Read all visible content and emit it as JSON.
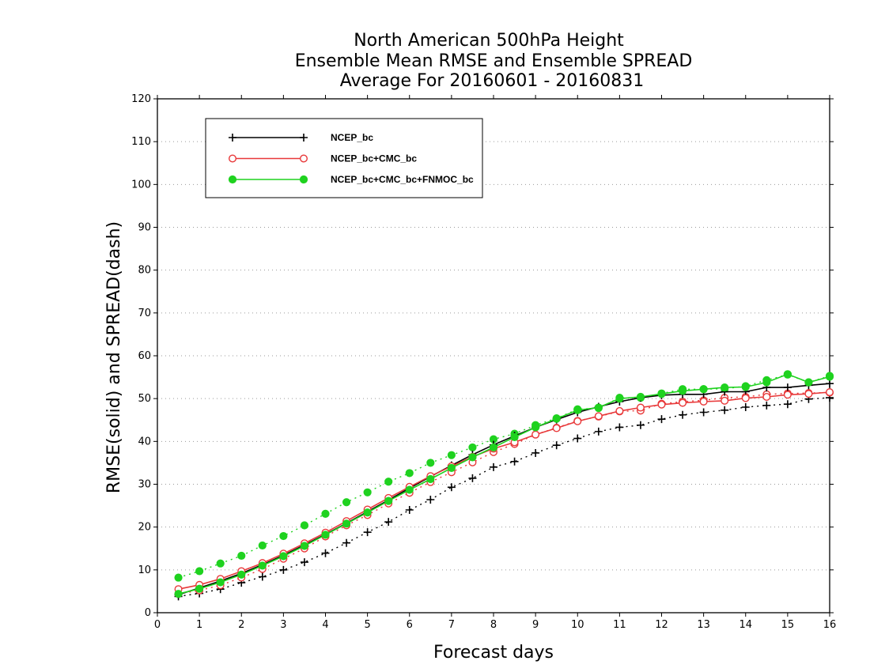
{
  "chart_data": {
    "type": "line",
    "title": [
      "North American 500hPa Height",
      "Ensemble Mean RMSE and Ensemble SPREAD",
      "Average For 20160601 - 20160831"
    ],
    "xlabel": "Forecast days",
    "ylabel": "RMSE(solid) and SPREAD(dash)",
    "xlim": [
      0,
      16
    ],
    "ylim": [
      0,
      120
    ],
    "xticks": [
      0,
      1,
      2,
      3,
      4,
      5,
      6,
      7,
      8,
      9,
      10,
      11,
      12,
      13,
      14,
      15,
      16
    ],
    "yticks": [
      0,
      10,
      20,
      30,
      40,
      50,
      60,
      70,
      80,
      90,
      100,
      110,
      120
    ],
    "grid": true,
    "legend_position": "top-left",
    "x": [
      0.5,
      1,
      1.5,
      2,
      2.5,
      3,
      3.5,
      4,
      4.5,
      5,
      5.5,
      6,
      6.5,
      7,
      7.5,
      8,
      8.5,
      9,
      9.5,
      10,
      10.5,
      11,
      11.5,
      12,
      12.5,
      13,
      13.5,
      14,
      14.5,
      15,
      15.5,
      16
    ],
    "series": [
      {
        "name": "NCEP_bc",
        "color": "#000000",
        "marker": "plus",
        "rmse": [
          4.2,
          5.8,
          7.4,
          9.2,
          11.2,
          13.4,
          15.8,
          18.3,
          20.9,
          23.6,
          26.3,
          29.1,
          31.8,
          34.4,
          36.9,
          39.2,
          41.3,
          43.3,
          45.1,
          46.8,
          48.1,
          49.3,
          50.2,
          50.8,
          51.0,
          51.0,
          51.6,
          51.6,
          52.6,
          52.6,
          53.1,
          53.5
        ],
        "spread": [
          3.8,
          4.5,
          5.5,
          7.0,
          8.4,
          10.0,
          11.8,
          13.9,
          16.3,
          18.8,
          21.2,
          24.0,
          26.4,
          29.3,
          31.4,
          34.0,
          35.3,
          37.3,
          39.1,
          40.7,
          42.3,
          43.3,
          43.8,
          45.2,
          46.2,
          46.8,
          47.3,
          48.0,
          48.4,
          48.7,
          49.9,
          50.2
        ]
      },
      {
        "name": "NCEP_bc+CMC_bc",
        "color": "#e8393a",
        "marker": "open-circle",
        "rmse": [
          5.5,
          6.5,
          7.9,
          9.7,
          11.6,
          13.8,
          16.2,
          18.7,
          21.4,
          24.1,
          26.8,
          29.4,
          31.9,
          34.2,
          36.4,
          38.3,
          39.8,
          41.6,
          43.1,
          44.7,
          45.9,
          47.1,
          47.9,
          48.6,
          49.0,
          49.3,
          49.5,
          50.1,
          50.4,
          50.9,
          51.1,
          51.5
        ],
        "spread": [
          4.4,
          5.2,
          6.4,
          8.2,
          10.2,
          12.6,
          15.0,
          17.8,
          20.4,
          22.8,
          25.5,
          28.0,
          30.5,
          32.8,
          35.1,
          37.5,
          39.4,
          41.6,
          43.2,
          44.8,
          45.8,
          47.0,
          47.2,
          48.8,
          49.3,
          49.6,
          50.2,
          50.4,
          51.0,
          51.2,
          51.3,
          51.4
        ]
      },
      {
        "name": "NCEP_bc+CMC_bc+FNMOC_bc",
        "color": "#1fd21f",
        "marker": "filled-circle",
        "rmse": [
          4.4,
          5.6,
          7.1,
          8.9,
          11.0,
          13.2,
          15.6,
          18.2,
          20.8,
          23.4,
          26.1,
          28.7,
          31.2,
          33.8,
          36.3,
          38.6,
          41.0,
          43.3,
          45.3,
          47.3,
          47.9,
          50.0,
          50.4,
          51.1,
          51.8,
          52.2,
          52.6,
          52.7,
          53.8,
          55.7,
          53.8,
          55.1
        ]
      },
      {
        "name": "NCEP_bc+CMC_bc+FNMOC_bc spread",
        "color": "#1fd21f",
        "marker": "filled-circle",
        "spread": [
          8.2,
          9.7,
          11.5,
          13.3,
          15.7,
          17.9,
          20.4,
          23.1,
          25.8,
          28.1,
          30.6,
          32.6,
          35.0,
          36.8,
          38.6,
          40.5,
          41.8,
          43.8,
          45.4,
          47.5,
          47.8,
          50.2,
          50.2,
          51.2,
          52.2,
          52.2,
          52.3,
          52.9,
          54.3,
          55.6,
          53.8,
          55.3
        ]
      }
    ]
  }
}
